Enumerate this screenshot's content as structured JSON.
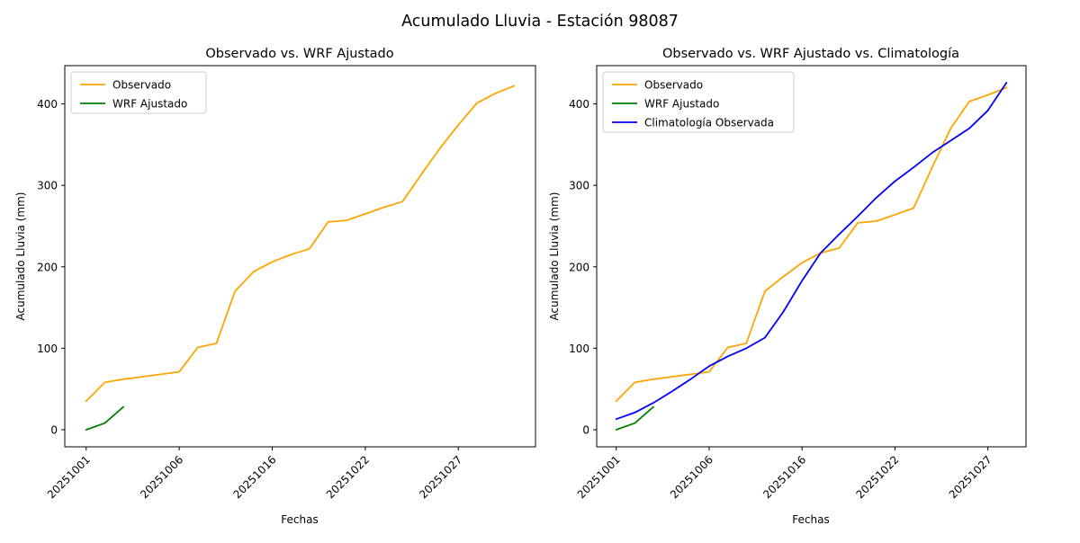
{
  "figure": {
    "suptitle": "Acumulado Lluvia - Estación 98087"
  },
  "chart_data": [
    {
      "type": "line",
      "title": "Observado vs. WRF Ajustado",
      "xlabel": "Fechas",
      "ylabel": "Acumulado Lluvia (mm)",
      "x_tick_positions": [
        0,
        5,
        10,
        15,
        20
      ],
      "x_tick_labels": [
        "20251001",
        "20251006",
        "20251016",
        "20251022",
        "20251027"
      ],
      "y_ticks": [
        0,
        100,
        200,
        300,
        400
      ],
      "xlim": [
        -1.15,
        24.15
      ],
      "ylim": [
        -21,
        447
      ],
      "grid": false,
      "legend_position": "upper left",
      "series": [
        {
          "name": "Observado",
          "color": "#FFA500",
          "values": [
            35,
            58,
            62,
            65,
            68,
            71,
            101,
            106,
            170,
            194,
            206,
            215,
            222,
            255,
            257,
            265,
            273,
            280,
            313,
            345,
            374,
            401,
            413,
            422
          ]
        },
        {
          "name": "WRF Ajustado",
          "color": "#008000",
          "values": [
            0,
            8,
            28
          ]
        }
      ]
    },
    {
      "type": "line",
      "title": "Observado vs. WRF Ajustado vs. Climatología",
      "xlabel": "Fechas",
      "ylabel": "Acumulado Lluvia (mm)",
      "x_tick_positions": [
        0,
        5,
        10,
        15,
        20
      ],
      "x_tick_labels": [
        "20251001",
        "20251006",
        "20251016",
        "20251022",
        "20251027"
      ],
      "y_ticks": [
        0,
        100,
        200,
        300,
        400
      ],
      "xlim": [
        -1.05,
        22.05
      ],
      "ylim": [
        -21,
        447
      ],
      "grid": false,
      "legend_position": "upper left",
      "series": [
        {
          "name": "Observado",
          "color": "#FFA500",
          "values": [
            35,
            58,
            62,
            65,
            68,
            71,
            101,
            106,
            170,
            188,
            205,
            217,
            223,
            254,
            256,
            264,
            272,
            322,
            370,
            403,
            411,
            420
          ]
        },
        {
          "name": "WRF Ajustado",
          "color": "#008000",
          "values": [
            0,
            8,
            28
          ]
        },
        {
          "name": "Climatología Observada",
          "color": "#0000FF",
          "values": [
            13,
            21,
            33,
            47,
            62,
            78,
            90,
            100,
            113,
            145,
            183,
            217,
            240,
            262,
            285,
            305,
            322,
            340,
            355,
            370,
            392,
            426
          ]
        }
      ]
    }
  ]
}
